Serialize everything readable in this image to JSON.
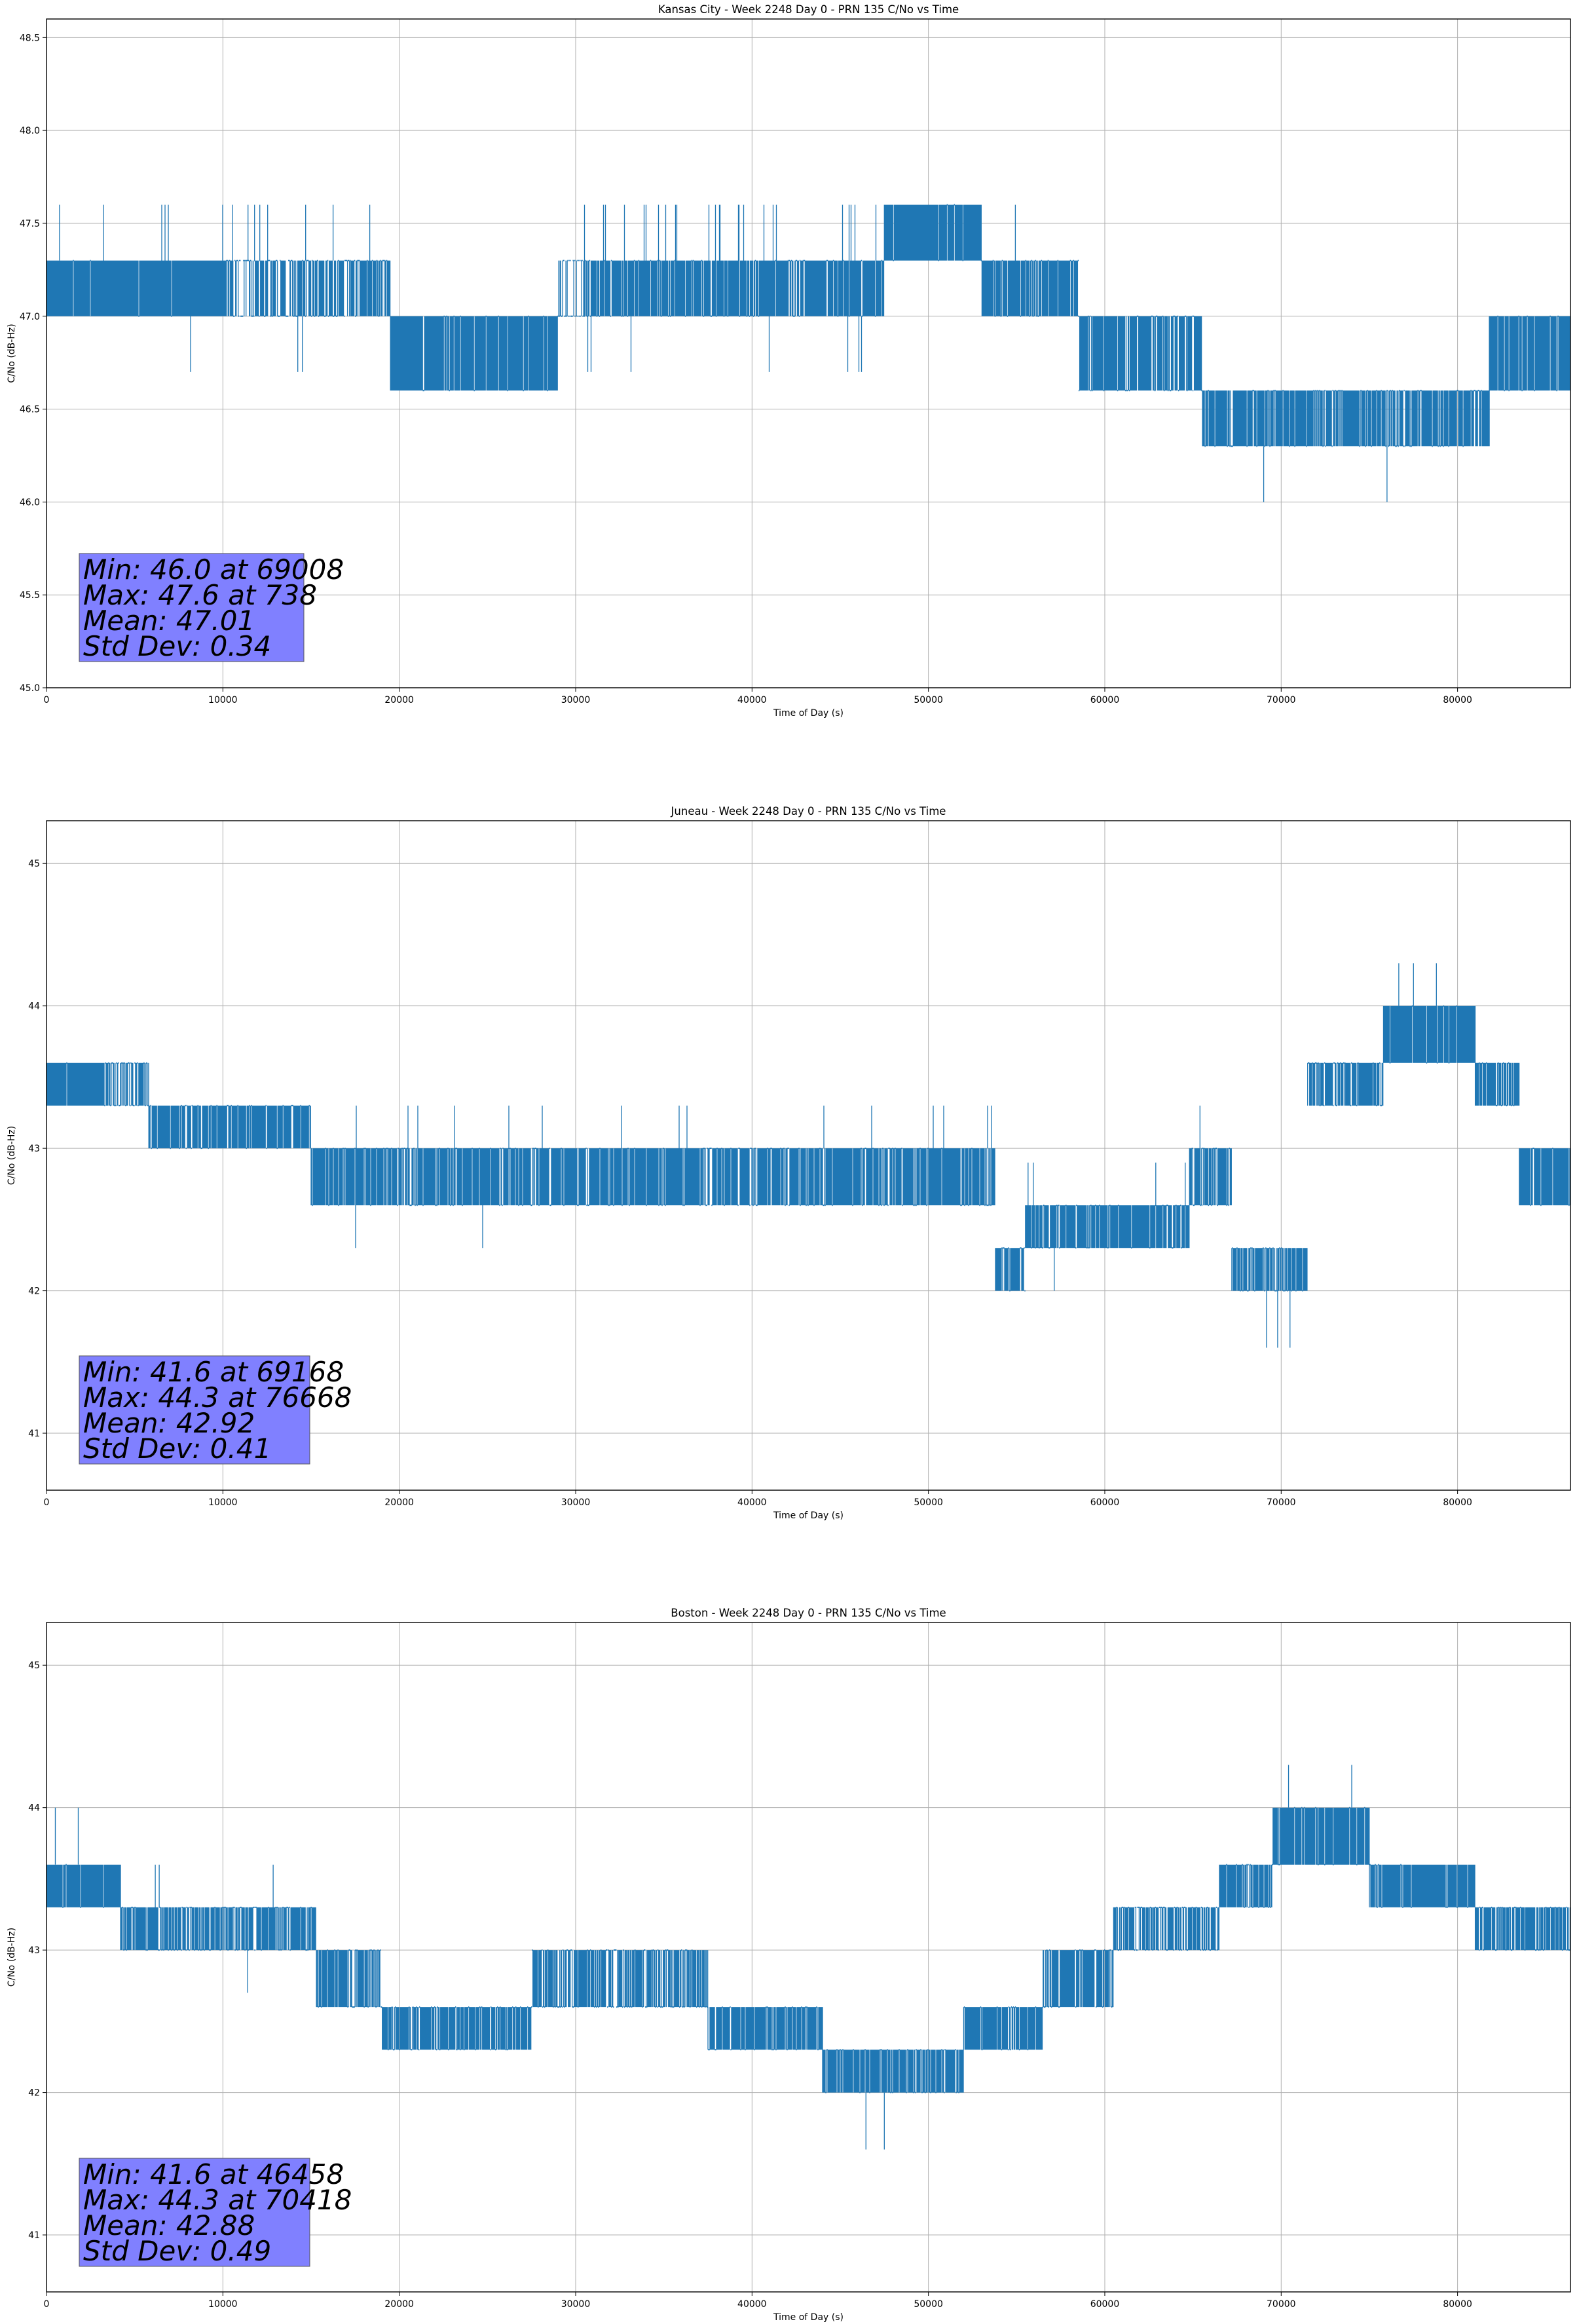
{
  "figure": {
    "background": "#ffffff",
    "series_color": "#1f77b4",
    "stats_box_color": "#8080ff"
  },
  "chart_data": [
    {
      "type": "line",
      "title": "Kansas City - Week 2248 Day 0 - PRN 135 C/No vs Time",
      "xlabel": "Time of Day (s)",
      "ylabel": "C/No (dB-Hz)",
      "xlim": [
        0,
        86400
      ],
      "ylim": [
        45.0,
        48.6
      ],
      "xticks": [
        0,
        10000,
        20000,
        30000,
        40000,
        50000,
        60000,
        70000,
        80000
      ],
      "yticks": [
        45.0,
        45.5,
        46.0,
        46.5,
        47.0,
        47.5,
        48.0,
        48.5
      ],
      "ytick_labels": [
        "45.0",
        "45.5",
        "46.0",
        "46.5",
        "47.0",
        "47.5",
        "48.0",
        "48.5"
      ],
      "grid": true,
      "series": [
        {
          "segments": [
            {
              "x0": 0,
              "x1": 10200,
              "lo": 47.0,
              "hi": 47.3,
              "dens": 0.985,
              "spikes": 0.04
            },
            {
              "x0": 10200,
              "x1": 14800,
              "lo": 47.0,
              "hi": 47.3,
              "dens": 0.6,
              "spikes": 0.35
            },
            {
              "x0": 14800,
              "x1": 19500,
              "lo": 47.0,
              "hi": 47.3,
              "dens": 0.7,
              "spikes": 0.05
            },
            {
              "x0": 19500,
              "x1": 29000,
              "lo": 46.6,
              "hi": 47.0,
              "dens": 0.95,
              "spikes": 0.0
            },
            {
              "x0": 29000,
              "x1": 30500,
              "lo": 47.0,
              "hi": 47.3,
              "dens": 0.35,
              "spikes": 0.0
            },
            {
              "x0": 30500,
              "x1": 47500,
              "lo": 47.0,
              "hi": 47.3,
              "dens": 0.88,
              "spikes": 0.22
            },
            {
              "x0": 47500,
              "x1": 53000,
              "lo": 47.3,
              "hi": 47.6,
              "dens": 0.96,
              "spikes": 0.0
            },
            {
              "x0": 53000,
              "x1": 58500,
              "lo": 47.0,
              "hi": 47.3,
              "dens": 0.82,
              "spikes": 0.06
            },
            {
              "x0": 58500,
              "x1": 65500,
              "lo": 46.6,
              "hi": 47.0,
              "dens": 0.75,
              "spikes": 0.0
            },
            {
              "x0": 65500,
              "x1": 81800,
              "lo": 46.3,
              "hi": 46.6,
              "dens": 0.8,
              "spikes": 0.0
            },
            {
              "x0": 81800,
              "x1": 86400,
              "lo": 46.6,
              "hi": 47.0,
              "dens": 0.9,
              "spikes": 0.0
            }
          ],
          "dips": [
            [
              69008,
              46.0
            ],
            [
              76000,
              46.0
            ]
          ],
          "peaks": [
            [
              738,
              47.6
            ]
          ]
        }
      ],
      "annotation": {
        "lines": [
          "Min: 46.0 at 69008",
          "Max: 47.6 at 738",
          "Mean: 47.01",
          "Std Dev: 0.34"
        ]
      }
    },
    {
      "type": "line",
      "title": "Juneau - Week 2248 Day 0 - PRN 135 C/No vs Time",
      "xlabel": "Time of Day (s)",
      "ylabel": "C/No (dB-Hz)",
      "xlim": [
        0,
        86400
      ],
      "ylim": [
        40.6,
        45.3
      ],
      "xticks": [
        0,
        10000,
        20000,
        30000,
        40000,
        50000,
        60000,
        70000,
        80000
      ],
      "yticks": [
        41,
        42,
        43,
        44,
        45
      ],
      "ytick_labels": [
        "41",
        "42",
        "43",
        "44",
        "45"
      ],
      "grid": true,
      "series": [
        {
          "segments": [
            {
              "x0": 0,
              "x1": 3300,
              "lo": 43.3,
              "hi": 43.6,
              "dens": 0.97,
              "spikes": 0.02
            },
            {
              "x0": 3300,
              "x1": 5800,
              "lo": 43.3,
              "hi": 43.6,
              "dens": 0.6,
              "spikes": 0.0
            },
            {
              "x0": 5800,
              "x1": 15000,
              "lo": 43.0,
              "hi": 43.3,
              "dens": 0.88,
              "spikes": 0.0
            },
            {
              "x0": 15000,
              "x1": 53800,
              "lo": 42.6,
              "hi": 43.0,
              "dens": 0.85,
              "spikes": 0.07
            },
            {
              "x0": 53800,
              "x1": 55500,
              "lo": 42.0,
              "hi": 42.3,
              "dens": 0.75,
              "spikes": 0.0
            },
            {
              "x0": 55500,
              "x1": 64800,
              "lo": 42.3,
              "hi": 42.6,
              "dens": 0.85,
              "spikes": 0.04
            },
            {
              "x0": 64800,
              "x1": 67200,
              "lo": 42.6,
              "hi": 43.0,
              "dens": 0.8,
              "spikes": 0.05
            },
            {
              "x0": 67200,
              "x1": 71500,
              "lo": 42.0,
              "hi": 42.3,
              "dens": 0.8,
              "spikes": 0.0
            },
            {
              "x0": 71500,
              "x1": 75800,
              "lo": 43.3,
              "hi": 43.6,
              "dens": 0.7,
              "spikes": 0.0
            },
            {
              "x0": 75800,
              "x1": 81000,
              "lo": 43.6,
              "hi": 44.0,
              "dens": 0.94,
              "spikes": 0.0
            },
            {
              "x0": 81000,
              "x1": 83500,
              "lo": 43.3,
              "hi": 43.6,
              "dens": 0.8,
              "spikes": 0.0
            },
            {
              "x0": 83500,
              "x1": 86400,
              "lo": 42.6,
              "hi": 43.0,
              "dens": 0.85,
              "spikes": 0.0
            }
          ],
          "dips": [
            [
              69168,
              41.6
            ],
            [
              69800,
              41.6
            ],
            [
              70500,
              41.6
            ]
          ],
          "peaks": [
            [
              76668,
              44.3
            ],
            [
              77500,
              44.3
            ],
            [
              78800,
              44.3
            ]
          ]
        }
      ],
      "annotation": {
        "lines": [
          "Min: 41.6 at 69168",
          "Max: 44.3 at 76668",
          "Mean: 42.92",
          "Std Dev: 0.41"
        ]
      }
    },
    {
      "type": "line",
      "title": "Boston - Week 2248 Day 0 - PRN 135 C/No vs Time",
      "xlabel": "Time of Day (s)",
      "ylabel": "C/No (dB-Hz)",
      "xlim": [
        0,
        86400
      ],
      "ylim": [
        40.6,
        45.3
      ],
      "xticks": [
        0,
        10000,
        20000,
        30000,
        40000,
        50000,
        60000,
        70000,
        80000
      ],
      "yticks": [
        41,
        42,
        43,
        44,
        45
      ],
      "ytick_labels": [
        "41",
        "42",
        "43",
        "44",
        "45"
      ],
      "grid": true,
      "series": [
        {
          "segments": [
            {
              "x0": 0,
              "x1": 4200,
              "lo": 43.3,
              "hi": 43.6,
              "dens": 0.95,
              "spikes": 0.03
            },
            {
              "x0": 4200,
              "x1": 15300,
              "lo": 43.0,
              "hi": 43.3,
              "dens": 0.82,
              "spikes": 0.02
            },
            {
              "x0": 15300,
              "x1": 19000,
              "lo": 42.6,
              "hi": 43.0,
              "dens": 0.75,
              "spikes": 0.0
            },
            {
              "x0": 19000,
              "x1": 27500,
              "lo": 42.3,
              "hi": 42.6,
              "dens": 0.85,
              "spikes": 0.0
            },
            {
              "x0": 27500,
              "x1": 37500,
              "lo": 42.6,
              "hi": 43.0,
              "dens": 0.78,
              "spikes": 0.0
            },
            {
              "x0": 37500,
              "x1": 44000,
              "lo": 42.3,
              "hi": 42.6,
              "dens": 0.85,
              "spikes": 0.0
            },
            {
              "x0": 44000,
              "x1": 52000,
              "lo": 42.0,
              "hi": 42.3,
              "dens": 0.85,
              "spikes": 0.0
            },
            {
              "x0": 52000,
              "x1": 56500,
              "lo": 42.3,
              "hi": 42.6,
              "dens": 0.82,
              "spikes": 0.0
            },
            {
              "x0": 56500,
              "x1": 60500,
              "lo": 42.6,
              "hi": 43.0,
              "dens": 0.82,
              "spikes": 0.0
            },
            {
              "x0": 60500,
              "x1": 66500,
              "lo": 43.0,
              "hi": 43.3,
              "dens": 0.75,
              "spikes": 0.0
            },
            {
              "x0": 66500,
              "x1": 69500,
              "lo": 43.3,
              "hi": 43.6,
              "dens": 0.82,
              "spikes": 0.0
            },
            {
              "x0": 69500,
              "x1": 75000,
              "lo": 43.6,
              "hi": 44.0,
              "dens": 0.9,
              "spikes": 0.0
            },
            {
              "x0": 75000,
              "x1": 81000,
              "lo": 43.3,
              "hi": 43.6,
              "dens": 0.9,
              "spikes": 0.03
            },
            {
              "x0": 81000,
              "x1": 86400,
              "lo": 43.0,
              "hi": 43.3,
              "dens": 0.82,
              "spikes": 0.03
            }
          ],
          "dips": [
            [
              46458,
              41.6
            ],
            [
              47500,
              41.6
            ]
          ],
          "peaks": [
            [
              70418,
              44.3
            ],
            [
              74000,
              44.3
            ],
            [
              500,
              44.0
            ],
            [
              1800,
              44.0
            ]
          ]
        }
      ],
      "annotation": {
        "lines": [
          "Min: 41.6 at 46458",
          "Max: 44.3 at 70418",
          "Mean: 42.88",
          "Std Dev: 0.49"
        ]
      }
    }
  ]
}
